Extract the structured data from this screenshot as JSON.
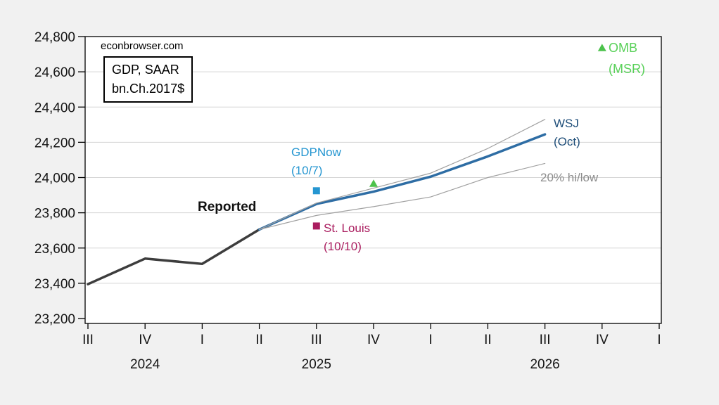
{
  "watermark": "econbrowser.com",
  "unit_box": {
    "line1": "GDP, SAAR",
    "line2": "bn.Ch.2017$"
  },
  "annotations": {
    "reported": {
      "text": "Reported",
      "color": "#111111"
    },
    "gdpnow": {
      "line1": "GDPNow",
      "line2": "(10/7)",
      "color": "#2596d1"
    },
    "stlouis": {
      "line1": "St. Louis",
      "line2": "(10/10)",
      "color": "#aa1d5f"
    },
    "wsj": {
      "line1": "WSJ",
      "line2": "(Oct)",
      "color": "#1f4e79"
    },
    "hilow": {
      "text": "20% hi/low",
      "color": "#8c8c8c"
    },
    "omb": {
      "line1": "OMB",
      "line2": "(MSR)",
      "color": "#57d057"
    }
  },
  "colors": {
    "background": "#f1f1f1",
    "plot_background": "#ffffff",
    "frame": "#000000",
    "gridline": "#d5d5d5",
    "reported_line": "#3d3d3d",
    "wsj_line": "#2e6da4",
    "hilow_line": "#a0a0a0",
    "gdpnow_marker": "#2596d1",
    "stlouis_marker": "#aa1d5f",
    "omb_marker": "#4cc24c"
  },
  "chart_data": {
    "type": "line",
    "title": "GDP, SAAR bn.Ch.2017$",
    "source_watermark": "econbrowser.com",
    "xlabel": "",
    "ylabel": "",
    "ylim": [
      23200,
      24800
    ],
    "ytick_step": 200,
    "grid": true,
    "x_tick_labels": [
      "III",
      "IV",
      "I",
      "II",
      "III",
      "IV",
      "I",
      "II",
      "III",
      "IV",
      "I"
    ],
    "x_quarters": [
      "2024Q3",
      "2024Q4",
      "2025Q1",
      "2025Q2",
      "2025Q3",
      "2025Q4",
      "2026Q1",
      "2026Q2",
      "2026Q3",
      "2026Q4",
      "2027Q1"
    ],
    "year_labels": [
      {
        "text": "2024",
        "index": 1
      },
      {
        "text": "2025",
        "index": 4
      },
      {
        "text": "2026",
        "index": 8
      }
    ],
    "y_ticks": [
      {
        "value": 23200,
        "label": "23,200"
      },
      {
        "value": 23400,
        "label": "23,400"
      },
      {
        "value": 23600,
        "label": "23,600"
      },
      {
        "value": 23800,
        "label": "23,800"
      },
      {
        "value": 24000,
        "label": "24,000"
      },
      {
        "value": 24200,
        "label": "24,200"
      },
      {
        "value": 24400,
        "label": "24,400"
      },
      {
        "value": 24600,
        "label": "24,600"
      },
      {
        "value": 24800,
        "label": "24,800"
      }
    ],
    "grid_values": [
      23400,
      23600,
      23800,
      24000,
      24200,
      24400,
      24600
    ],
    "series": [
      {
        "name": "Reported",
        "color": "#3d3d3d",
        "width": 3.5,
        "start_index": 0,
        "values": [
          23395,
          23540,
          23510,
          23705
        ]
      },
      {
        "name": "WSJ (Oct)",
        "color": "#2e6da4",
        "width": 3.5,
        "start_index": 3,
        "values": [
          23705,
          23850,
          23920,
          24005,
          24120,
          24245
        ]
      },
      {
        "name": "20% high",
        "color": "#a0a0a0",
        "width": 1.2,
        "start_index": 3,
        "values": [
          23705,
          23855,
          23940,
          24025,
          24165,
          24330
        ]
      },
      {
        "name": "20% low",
        "color": "#a0a0a0",
        "width": 1.2,
        "start_index": 3,
        "values": [
          23705,
          23785,
          23835,
          23890,
          24000,
          24080
        ]
      }
    ],
    "markers": [
      {
        "name": "GDPNow (10/7)",
        "shape": "square",
        "color": "#2596d1",
        "index": 4,
        "value": 23925
      },
      {
        "name": "St. Louis (10/10)",
        "shape": "square",
        "color": "#aa1d5f",
        "index": 4,
        "value": 23725
      },
      {
        "name": "OMB (MSR) 2025Q4",
        "shape": "triangle",
        "color": "#4cc24c",
        "index": 5,
        "value": 23965
      },
      {
        "name": "OMB (MSR) 2026Q4",
        "shape": "triangle",
        "color": "#4cc24c",
        "index": 9,
        "value": 24735
      }
    ]
  }
}
